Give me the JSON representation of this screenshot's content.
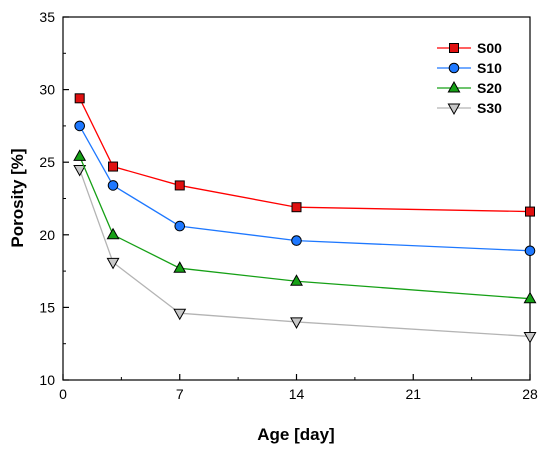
{
  "chart_data": {
    "type": "line",
    "title": "",
    "xlabel": "Age [day]",
    "ylabel": "Porosity [%]",
    "xlim": [
      0,
      28
    ],
    "ylim": [
      10,
      35
    ],
    "xticks": [
      0,
      7,
      14,
      21,
      28
    ],
    "yticks": [
      10,
      15,
      20,
      25,
      30,
      35
    ],
    "x": [
      1,
      3,
      7,
      14,
      28
    ],
    "legend_position": "top-right",
    "grid": false,
    "series": [
      {
        "name": "S00",
        "values": [
          29.4,
          24.7,
          23.4,
          21.9,
          21.6
        ],
        "color": "#ff0000",
        "fill": "#e01010",
        "marker": "square"
      },
      {
        "name": "S10",
        "values": [
          27.5,
          23.4,
          20.6,
          19.6,
          18.9
        ],
        "color": "#1e78ff",
        "fill": "#1e78ff",
        "marker": "circle"
      },
      {
        "name": "S20",
        "values": [
          25.4,
          20.0,
          17.7,
          16.8,
          15.6
        ],
        "color": "#16a016",
        "fill": "#16a016",
        "marker": "triangle-up"
      },
      {
        "name": "S30",
        "values": [
          24.5,
          18.1,
          14.6,
          14.0,
          13.0
        ],
        "color": "#b4b4b4",
        "fill": "#c8c8c8",
        "marker": "triangle-down"
      }
    ]
  }
}
